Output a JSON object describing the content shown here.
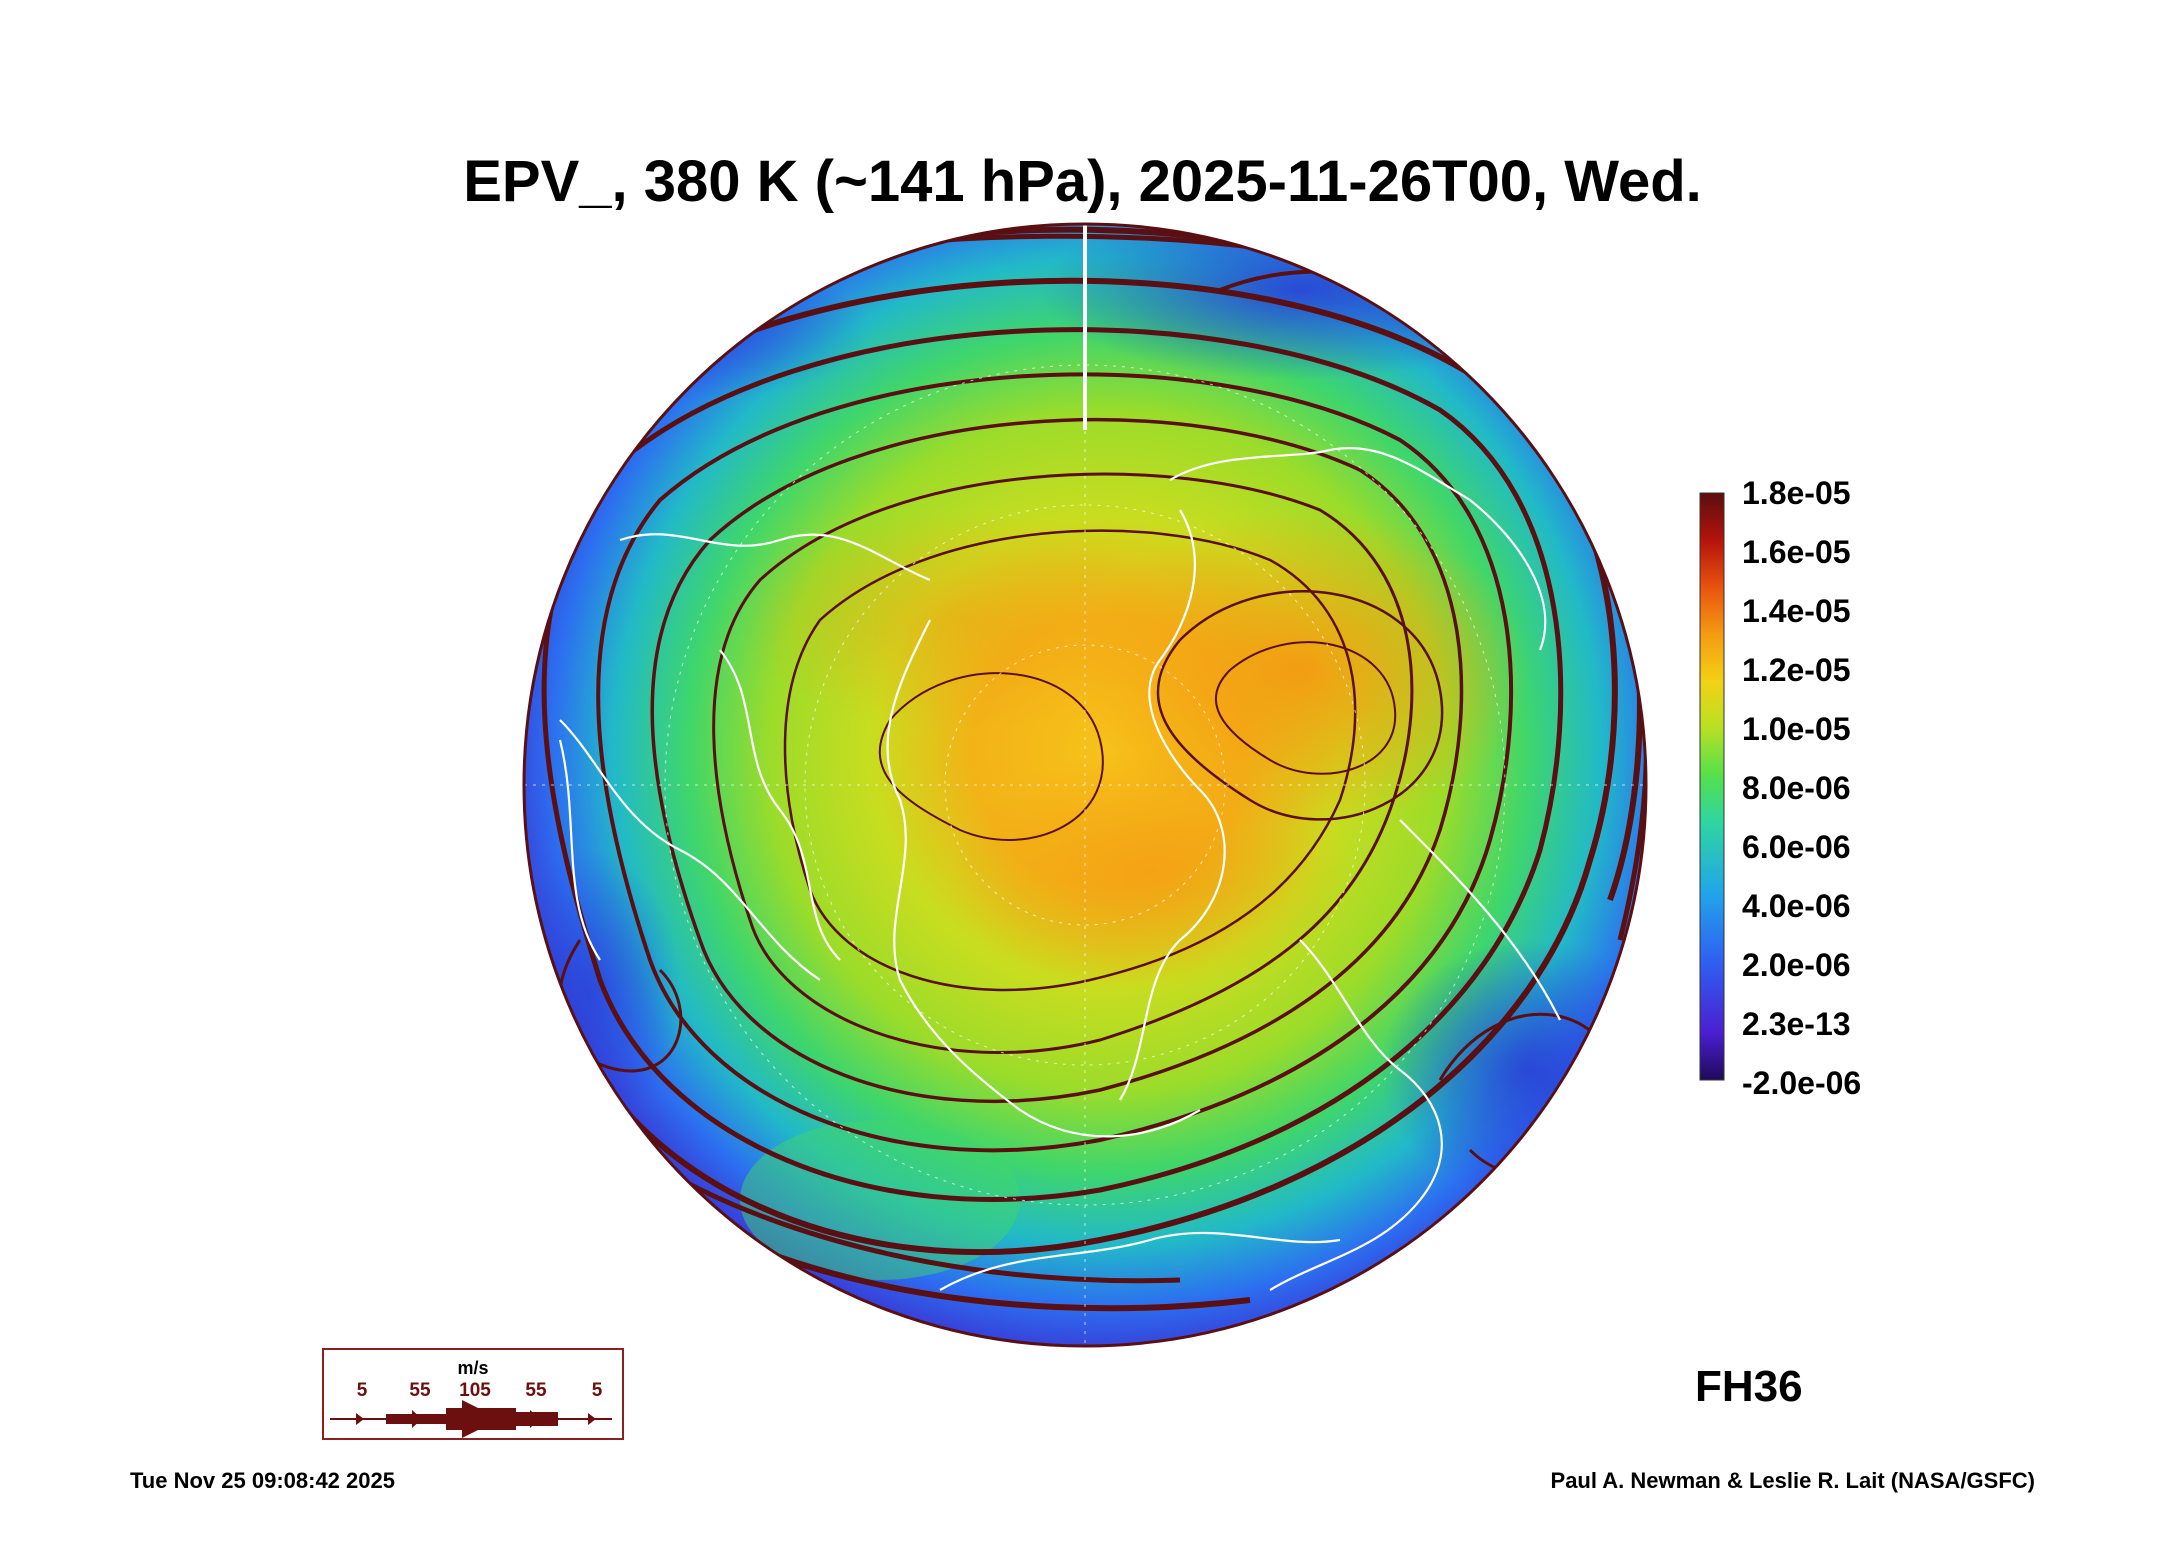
{
  "title": "EPV_, 380 K (~141 hPa), 2025-11-26T00, Wed.",
  "colorbar": {
    "labels": [
      "1.8e-05",
      "1.6e-05",
      "1.4e-05",
      "1.2e-05",
      "1.0e-05",
      "8.0e-06",
      "6.0e-06",
      "4.0e-06",
      "2.0e-06",
      "2.3e-13",
      "-2.0e-06"
    ],
    "range": [
      -2e-06,
      1.8e-05
    ]
  },
  "forecast_hour": "FH36",
  "wind_legend": {
    "unit": "m/s",
    "ticks": [
      "5",
      "55",
      "105",
      "55",
      "5"
    ]
  },
  "footer": {
    "timestamp": "Tue Nov 25 09:08:42 2025",
    "credit": "Paul A. Newman & Leslie R. Lait (NASA/GSFC)"
  },
  "colors": {
    "streamline": "#5a0f12",
    "coast": "#ffffff",
    "frame": "#8b2020"
  }
}
